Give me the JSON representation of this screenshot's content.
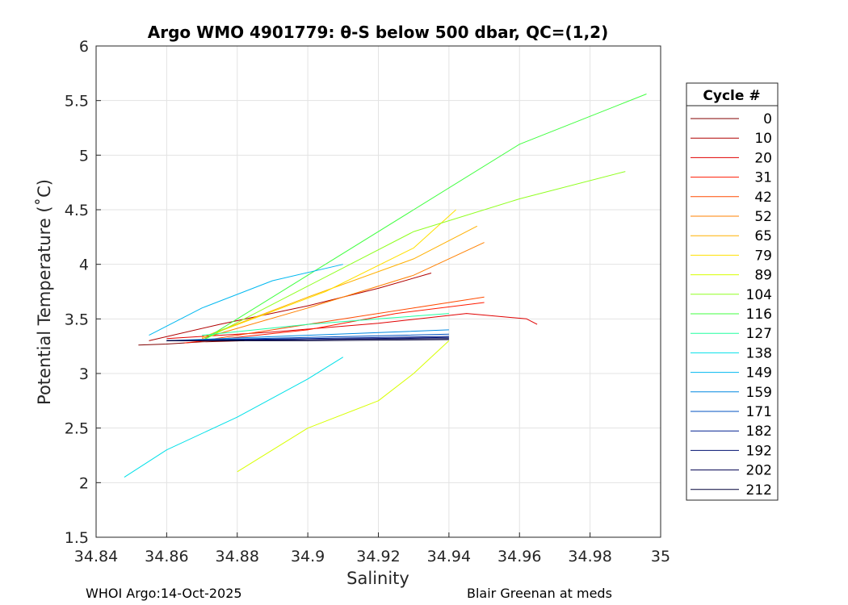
{
  "chart_data": {
    "type": "line",
    "title": "Argo WMO 4901779: θ-S below 500 dbar,  QC=(1,2)",
    "xlabel": "Salinity",
    "ylabel": "Potential Temperature (˚C)",
    "xlim": [
      34.84,
      35.0
    ],
    "ylim": [
      1.5,
      6.0
    ],
    "xticks": [
      "34.84",
      "34.86",
      "34.88",
      "34.9",
      "34.92",
      "34.94",
      "34.96",
      "34.98",
      "35"
    ],
    "yticks": [
      "1.5",
      "2",
      "2.5",
      "3",
      "3.5",
      "4",
      "4.5",
      "5",
      "5.5",
      "6"
    ],
    "grid": true,
    "legend_position": "right-outside",
    "legend_title": "Cycle #",
    "series": [
      {
        "name": "0",
        "color": "#800000",
        "x": [
          34.852,
          34.86,
          34.87,
          34.882
        ],
        "y": [
          3.26,
          3.27,
          3.29,
          3.3
        ]
      },
      {
        "name": "10",
        "color": "#b00000",
        "x": [
          34.855,
          34.875,
          34.9,
          34.92,
          34.935
        ],
        "y": [
          3.3,
          3.45,
          3.62,
          3.78,
          3.92
        ]
      },
      {
        "name": "20",
        "color": "#e00000",
        "x": [
          34.86,
          34.89,
          34.92,
          34.945,
          34.962,
          34.965
        ],
        "y": [
          3.32,
          3.38,
          3.46,
          3.55,
          3.5,
          3.45
        ]
      },
      {
        "name": "31",
        "color": "#ff1a00",
        "x": [
          34.865,
          34.9,
          34.925,
          34.95
        ],
        "y": [
          3.28,
          3.4,
          3.55,
          3.65
        ]
      },
      {
        "name": "42",
        "color": "#ff4a00",
        "x": [
          34.87,
          34.9,
          34.93,
          34.95
        ],
        "y": [
          3.3,
          3.45,
          3.6,
          3.7
        ]
      },
      {
        "name": "52",
        "color": "#ff8000",
        "x": [
          34.87,
          34.9,
          34.93,
          34.95
        ],
        "y": [
          3.32,
          3.6,
          3.9,
          4.2
        ]
      },
      {
        "name": "65",
        "color": "#ffb000",
        "x": [
          34.87,
          34.9,
          34.93,
          34.948
        ],
        "y": [
          3.33,
          3.7,
          4.05,
          4.35
        ]
      },
      {
        "name": "79",
        "color": "#ffe000",
        "x": [
          34.872,
          34.905,
          34.93,
          34.942
        ],
        "y": [
          3.35,
          3.75,
          4.15,
          4.5
        ]
      },
      {
        "name": "89",
        "color": "#d8ff00",
        "x": [
          34.88,
          34.9,
          34.92,
          34.93,
          34.94
        ],
        "y": [
          2.1,
          2.5,
          2.75,
          3.0,
          3.3
        ]
      },
      {
        "name": "104",
        "color": "#90ff20",
        "x": [
          34.87,
          34.9,
          34.93,
          34.96,
          34.99
        ],
        "y": [
          3.3,
          3.8,
          4.3,
          4.6,
          4.85
        ]
      },
      {
        "name": "116",
        "color": "#40ff40",
        "x": [
          34.87,
          34.9,
          34.93,
          34.96,
          34.996
        ],
        "y": [
          3.3,
          3.9,
          4.5,
          5.1,
          5.56
        ]
      },
      {
        "name": "127",
        "color": "#20ffa0",
        "x": [
          34.87,
          34.9,
          34.92,
          34.94
        ],
        "y": [
          3.35,
          3.45,
          3.5,
          3.55
        ]
      },
      {
        "name": "138",
        "color": "#00e0e8",
        "x": [
          34.848,
          34.86,
          34.88,
          34.9,
          34.91
        ],
        "y": [
          2.05,
          2.3,
          2.6,
          2.95,
          3.15
        ]
      },
      {
        "name": "149",
        "color": "#00b8f0",
        "x": [
          34.855,
          34.87,
          34.89,
          34.91
        ],
        "y": [
          3.35,
          3.6,
          3.85,
          4.0
        ]
      },
      {
        "name": "159",
        "color": "#0088e0",
        "x": [
          34.86,
          34.9,
          34.94
        ],
        "y": [
          3.3,
          3.35,
          3.4
        ]
      },
      {
        "name": "171",
        "color": "#0050c0",
        "x": [
          34.86,
          34.9,
          34.94
        ],
        "y": [
          3.3,
          3.33,
          3.36
        ]
      },
      {
        "name": "182",
        "color": "#002090",
        "x": [
          34.86,
          34.9,
          34.94
        ],
        "y": [
          3.3,
          3.32,
          3.34
        ]
      },
      {
        "name": "192",
        "color": "#001070",
        "x": [
          34.86,
          34.9,
          34.94
        ],
        "y": [
          3.3,
          3.31,
          3.33
        ]
      },
      {
        "name": "202",
        "color": "#000050",
        "x": [
          34.86,
          34.9,
          34.94
        ],
        "y": [
          3.3,
          3.31,
          3.32
        ]
      },
      {
        "name": "212",
        "color": "#000038",
        "x": [
          34.86,
          34.9,
          34.94
        ],
        "y": [
          3.3,
          3.3,
          3.31
        ]
      }
    ]
  },
  "footer": {
    "left": "WHOI Argo:14-Oct-2025",
    "right": "Blair Greenan at meds"
  }
}
